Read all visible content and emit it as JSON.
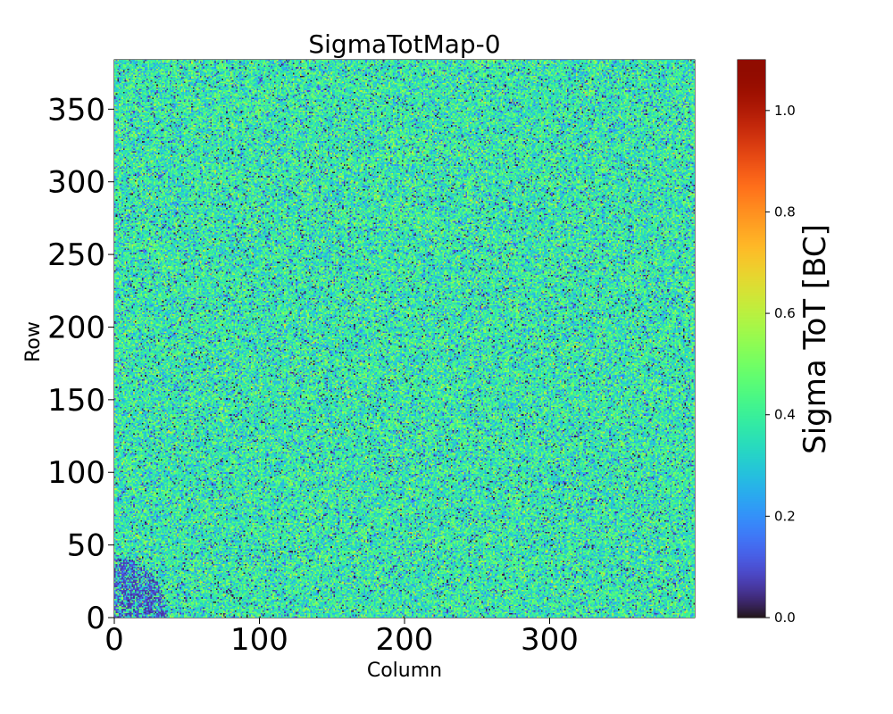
{
  "chart_data": {
    "type": "heatmap",
    "title": "SigmaTotMap-0",
    "xlabel": "Column",
    "ylabel": "Row",
    "xlim": [
      0,
      400
    ],
    "ylim": [
      0,
      384
    ],
    "n_columns": 400,
    "n_rows": 384,
    "x_ticks": [
      0,
      100,
      200,
      300
    ],
    "x_tick_labels": [
      "0",
      "100",
      "200",
      "300"
    ],
    "y_ticks": [
      0,
      50,
      100,
      150,
      200,
      250,
      300,
      350
    ],
    "y_tick_labels": [
      "0",
      "50",
      "100",
      "150",
      "200",
      "250",
      "300",
      "350"
    ],
    "colormap": "turbo",
    "colorbar": {
      "label": "Sigma ToT [BC]",
      "range": [
        0.0,
        1.1
      ],
      "ticks": [
        0.0,
        0.2,
        0.4,
        0.6,
        0.8,
        1.0
      ],
      "tick_labels": [
        "0.0",
        "0.2",
        "0.4",
        "0.6",
        "0.8",
        "1.0"
      ]
    },
    "value_distribution": {
      "typical_mean": 0.38,
      "typical_spread": 0.1,
      "low_value_fraction": 0.06
    },
    "features": [
      {
        "description_value": "low-value cluster",
        "column_range": [
          0,
          35
        ],
        "row_range": [
          0,
          40
        ],
        "typical_value": 0.05
      }
    ]
  }
}
